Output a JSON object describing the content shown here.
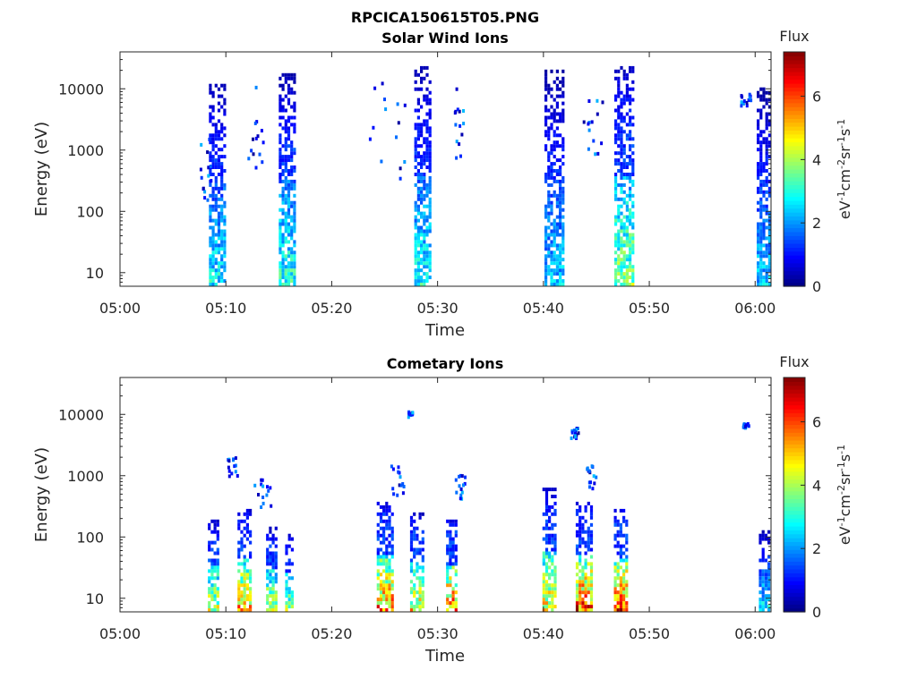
{
  "figure_title": "RPCICA150615T05.PNG",
  "chart_data": [
    {
      "type": "heatmap",
      "title": "Solar Wind Ions",
      "xlabel": "Time",
      "ylabel": "Energy (eV)",
      "x_tick_labels": [
        "05:00",
        "05:10",
        "05:20",
        "05:30",
        "05:40",
        "05:50",
        "06:00"
      ],
      "x_ticks_minutes": [
        0,
        10,
        20,
        30,
        40,
        50,
        60
      ],
      "xlim_minutes": [
        0,
        61.5
      ],
      "y_scale": "log",
      "y_tick_labels": [
        "10",
        "100",
        "1000",
        "10000"
      ],
      "y_ticks": [
        10,
        100,
        1000,
        10000
      ],
      "ylim": [
        6,
        40000
      ],
      "colorbar": {
        "label": "Flux",
        "unit": "eV-1cm-2sr-1s-1",
        "ticks": [
          0,
          2,
          4,
          6
        ],
        "range": [
          0,
          7.4
        ]
      },
      "bursts": [
        {
          "t": 9.2,
          "w": 1.6,
          "emax": 15000,
          "fmax": 3.2
        },
        {
          "t": 15.8,
          "w": 1.6,
          "emax": 18000,
          "fmax": 3.6
        },
        {
          "t": 28.6,
          "w": 1.6,
          "emax": 25000,
          "fmax": 3.4
        },
        {
          "t": 41.0,
          "w": 1.8,
          "emax": 20000,
          "fmax": 2.8
        },
        {
          "t": 47.6,
          "w": 1.8,
          "emax": 25000,
          "fmax": 4.4
        },
        {
          "t": 60.8,
          "w": 1.3,
          "emax": 10000,
          "fmax": 2.8
        }
      ],
      "sparse": [
        {
          "t0": 7.5,
          "t1": 8.5,
          "e0": 150,
          "e1": 1500
        },
        {
          "t0": 12.0,
          "t1": 13.5,
          "e0": 400,
          "e1": 20000
        },
        {
          "t0": 23.5,
          "t1": 27.0,
          "e0": 200,
          "e1": 15000
        },
        {
          "t0": 31.5,
          "t1": 32.5,
          "e0": 600,
          "e1": 15000
        },
        {
          "t0": 43.5,
          "t1": 45.5,
          "e0": 800,
          "e1": 8000
        },
        {
          "t0": 58.5,
          "t1": 59.5,
          "e0": 5000,
          "e1": 9000
        }
      ]
    },
    {
      "type": "heatmap",
      "title": "Cometary Ions",
      "xlabel": "Time",
      "ylabel": "Energy (eV)",
      "x_tick_labels": [
        "05:00",
        "05:10",
        "05:20",
        "05:30",
        "05:40",
        "05:50",
        "06:00"
      ],
      "x_ticks_minutes": [
        0,
        10,
        20,
        30,
        40,
        50,
        60
      ],
      "xlim_minutes": [
        0,
        61.5
      ],
      "y_scale": "log",
      "y_tick_labels": [
        "10",
        "100",
        "1000",
        "10000"
      ],
      "y_ticks": [
        10,
        100,
        1000,
        10000
      ],
      "ylim": [
        6,
        40000
      ],
      "colorbar": {
        "label": "Flux",
        "unit": "eV-1cm-2sr-1s-1",
        "ticks": [
          0,
          2,
          4,
          6
        ],
        "range": [
          0,
          7.4
        ]
      },
      "bursts": [
        {
          "t": 8.8,
          "w": 1.0,
          "emax": 200,
          "fmax": 5.0
        },
        {
          "t": 11.7,
          "w": 1.2,
          "emax": 300,
          "fmax": 6.2
        },
        {
          "t": 14.3,
          "w": 1.0,
          "emax": 150,
          "fmax": 5.0
        },
        {
          "t": 16.0,
          "w": 0.8,
          "emax": 120,
          "fmax": 4.5
        },
        {
          "t": 25.0,
          "w": 1.5,
          "emax": 400,
          "fmax": 6.5
        },
        {
          "t": 28.0,
          "w": 1.2,
          "emax": 250,
          "fmax": 5.5
        },
        {
          "t": 31.3,
          "w": 1.0,
          "emax": 200,
          "fmax": 6.8
        },
        {
          "t": 40.5,
          "w": 1.2,
          "emax": 600,
          "fmax": 5.5
        },
        {
          "t": 43.8,
          "w": 1.5,
          "emax": 400,
          "fmax": 7.0
        },
        {
          "t": 47.3,
          "w": 1.3,
          "emax": 300,
          "fmax": 7.2
        },
        {
          "t": 60.8,
          "w": 0.9,
          "emax": 150,
          "fmax": 3.2
        }
      ],
      "sparse": [
        {
          "t0": 10.0,
          "t1": 11.0,
          "e0": 800,
          "e1": 2000
        },
        {
          "t0": 12.5,
          "t1": 14.5,
          "e0": 300,
          "e1": 900
        },
        {
          "t0": 25.5,
          "t1": 27.0,
          "e0": 400,
          "e1": 1500
        },
        {
          "t0": 27.0,
          "t1": 27.7,
          "e0": 9000,
          "e1": 11000
        },
        {
          "t0": 31.5,
          "t1": 32.5,
          "e0": 400,
          "e1": 1000
        },
        {
          "t0": 42.5,
          "t1": 43.2,
          "e0": 4000,
          "e1": 6000
        },
        {
          "t0": 44.0,
          "t1": 45.0,
          "e0": 600,
          "e1": 1500
        },
        {
          "t0": 58.7,
          "t1": 59.3,
          "e0": 6000,
          "e1": 7000
        }
      ]
    }
  ]
}
